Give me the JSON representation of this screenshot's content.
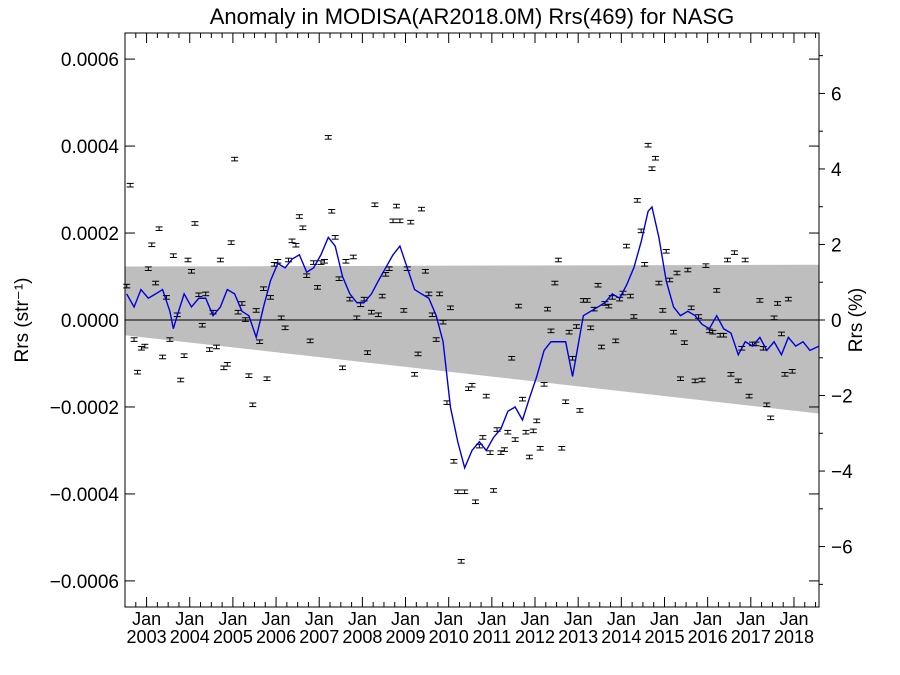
{
  "chart_data": {
    "type": "scatter",
    "title": "Anomaly in MODISA(AR2018.0M) Rrs(469) for NASG",
    "ylabel_left": "Rrs (str⁻¹)",
    "ylabel_right": "Rrs (%)",
    "ylim_left": [
      -0.00066,
      0.00066
    ],
    "ylim_right": [
      -7.6,
      7.6
    ],
    "xlim": [
      2002.5,
      2018.58
    ],
    "left_ticks": [
      "0.0006",
      "0.0004",
      "0.0002",
      "0.0000",
      "−0.0002",
      "−0.0004",
      "−0.0006"
    ],
    "left_tick_values": [
      0.0006,
      0.0004,
      0.0002,
      0.0,
      -0.0002,
      -0.0004,
      -0.0006
    ],
    "right_ticks": [
      "6",
      "4",
      "2",
      "0",
      "−2",
      "−4",
      "−6"
    ],
    "right_tick_values": [
      6,
      4,
      2,
      0,
      -2,
      -4,
      -6
    ],
    "x_tick_top": "Jan",
    "x_tick_years": [
      "2003",
      "2004",
      "2005",
      "2006",
      "2007",
      "2008",
      "2009",
      "2010",
      "2011",
      "2012",
      "2013",
      "2014",
      "2015",
      "2016",
      "2017",
      "2018"
    ],
    "uncertainty_band": {
      "upper": [
        [
          2002.5,
          0.000123
        ],
        [
          2018.58,
          0.000127
        ]
      ],
      "lower": [
        [
          2002.5,
          -3.5e-05
        ],
        [
          2018.58,
          -0.000215
        ]
      ]
    },
    "points": [
      [
        2002.54,
        7.8e-05
      ],
      [
        2002.62,
        0.00031
      ],
      [
        2002.71,
        -4.5e-05
      ],
      [
        2002.79,
        -0.00012
      ],
      [
        2002.88,
        -6.5e-05
      ],
      [
        2002.96,
        -6e-05
      ],
      [
        2003.04,
        0.000118
      ],
      [
        2003.12,
        0.000173
      ],
      [
        2003.21,
        8.5e-05
      ],
      [
        2003.29,
        0.00021
      ],
      [
        2003.37,
        -8.5e-05
      ],
      [
        2003.46,
        5.2e-05
      ],
      [
        2003.54,
        -4.5e-05
      ],
      [
        2003.62,
        0.000148
      ],
      [
        2003.71,
        1.2e-05
      ],
      [
        2003.79,
        -0.000138
      ],
      [
        2003.87,
        -8.2e-05
      ],
      [
        2003.96,
        0.000138
      ],
      [
        2004.04,
        0.000112
      ],
      [
        2004.12,
        0.000222
      ],
      [
        2004.21,
        5.8e-05
      ],
      [
        2004.29,
        -1.2e-05
      ],
      [
        2004.37,
        6e-05
      ],
      [
        2004.46,
        -6.8e-05
      ],
      [
        2004.54,
        1.8e-05
      ],
      [
        2004.62,
        -6.2e-05
      ],
      [
        2004.71,
        0.000138
      ],
      [
        2004.79,
        -0.00011
      ],
      [
        2004.87,
        -0.000102
      ],
      [
        2004.96,
        0.000178
      ],
      [
        2005.04,
        0.00037
      ],
      [
        2005.12,
        1.8e-05
      ],
      [
        2005.21,
        3.8e-05
      ],
      [
        2005.29,
        1e-06
      ],
      [
        2005.37,
        -0.000128
      ],
      [
        2005.46,
        -0.000195
      ],
      [
        2005.54,
        2.2e-05
      ],
      [
        2005.62,
        -5e-05
      ],
      [
        2005.71,
        7.2e-05
      ],
      [
        2005.79,
        -0.000135
      ],
      [
        2005.87,
        5.2e-05
      ],
      [
        2005.96,
        0.000128
      ],
      [
        2006.04,
        0.000135
      ],
      [
        2006.12,
        5e-06
      ],
      [
        2006.21,
        -1.8e-05
      ],
      [
        2006.29,
        0.000138
      ],
      [
        2006.37,
        0.000182
      ],
      [
        2006.46,
        0.000172
      ],
      [
        2006.54,
        0.000238
      ],
      [
        2006.62,
        0.000212
      ],
      [
        2006.71,
        0.000102
      ],
      [
        2006.79,
        -4.8e-05
      ],
      [
        2006.87,
        0.000132
      ],
      [
        2006.96,
        7.5e-05
      ],
      [
        2007.04,
        0.000132
      ],
      [
        2007.12,
        0.000135
      ],
      [
        2007.21,
        0.00042
      ],
      [
        2007.29,
        0.00025
      ],
      [
        2007.37,
        0.00019
      ],
      [
        2007.46,
        9.5e-05
      ],
      [
        2007.54,
        -0.00011
      ],
      [
        2007.62,
        0.000135
      ],
      [
        2007.71,
        4.8e-05
      ],
      [
        2007.79,
        0.000145
      ],
      [
        2007.87,
        5e-06
      ],
      [
        2007.96,
        3.5e-05
      ],
      [
        2008.04,
        4.8e-05
      ],
      [
        2008.12,
        -7.5e-05
      ],
      [
        2008.21,
        1.8e-05
      ],
      [
        2008.29,
        0.000265
      ],
      [
        2008.37,
        1.2e-05
      ],
      [
        2008.46,
        5.5e-05
      ],
      [
        2008.54,
        0.000105
      ],
      [
        2008.62,
        0.000118
      ],
      [
        2008.71,
        0.000228
      ],
      [
        2008.79,
        0.000262
      ],
      [
        2008.87,
        0.000228
      ],
      [
        2008.96,
        2.2e-05
      ],
      [
        2009.04,
        0.000118
      ],
      [
        2009.12,
        0.000225
      ],
      [
        2009.21,
        -0.000125
      ],
      [
        2009.29,
        -7.8e-05
      ],
      [
        2009.37,
        0.000255
      ],
      [
        2009.46,
        0.000112
      ],
      [
        2009.54,
        6e-05
      ],
      [
        2009.62,
        1.2e-05
      ],
      [
        2009.71,
        -4.5e-05
      ],
      [
        2009.79,
        6e-05
      ],
      [
        2009.87,
        -5e-06
      ],
      [
        2009.96,
        -0.00019
      ],
      [
        2010.04,
        2.8e-05
      ],
      [
        2010.12,
        -0.000325
      ],
      [
        2010.21,
        -0.000395
      ],
      [
        2010.29,
        -0.000555
      ],
      [
        2010.37,
        -0.000395
      ],
      [
        2010.46,
        -0.000158
      ],
      [
        2010.54,
        -0.00015
      ],
      [
        2010.62,
        -0.000418
      ],
      [
        2010.71,
        -0.00029
      ],
      [
        2010.79,
        -0.00027
      ],
      [
        2010.87,
        -0.000175
      ],
      [
        2010.96,
        -0.000305
      ],
      [
        2011.04,
        -0.000392
      ],
      [
        2011.12,
        -0.000252
      ],
      [
        2011.21,
        -0.000305
      ],
      [
        2011.29,
        -0.000298
      ],
      [
        2011.37,
        -0.000258
      ],
      [
        2011.46,
        -8.8e-05
      ],
      [
        2011.54,
        -0.000275
      ],
      [
        2011.62,
        3.2e-05
      ],
      [
        2011.71,
        -0.000182
      ],
      [
        2011.79,
        -0.000258
      ],
      [
        2011.87,
        -0.000315
      ],
      [
        2011.96,
        -0.000255
      ],
      [
        2012.04,
        -0.000232
      ],
      [
        2012.12,
        -0.000295
      ],
      [
        2012.21,
        -0.000148
      ],
      [
        2012.29,
        2.5e-05
      ],
      [
        2012.37,
        -2.5e-05
      ],
      [
        2012.46,
        8.5e-05
      ],
      [
        2012.54,
        0.000138
      ],
      [
        2012.62,
        -0.000295
      ],
      [
        2012.71,
        -0.000188
      ],
      [
        2012.79,
        -2.8e-05
      ],
      [
        2012.87,
        -8.8e-05
      ],
      [
        2012.96,
        -1.5e-05
      ],
      [
        2013.04,
        -0.000208
      ],
      [
        2013.12,
        4.5e-05
      ],
      [
        2013.21,
        4.5e-05
      ],
      [
        2013.29,
        -1.8e-05
      ],
      [
        2013.37,
        2.5e-05
      ],
      [
        2013.46,
        8e-05
      ],
      [
        2013.54,
        -6.2e-05
      ],
      [
        2013.62,
        3.8e-05
      ],
      [
        2013.71,
        3.2e-05
      ],
      [
        2013.79,
        5.2e-05
      ],
      [
        2013.87,
        -4.8e-05
      ],
      [
        2013.96,
        4.8e-05
      ],
      [
        2014.04,
        6.2e-05
      ],
      [
        2014.12,
        0.00017
      ],
      [
        2014.21,
        5.5e-05
      ],
      [
        2014.29,
        8e-06
      ],
      [
        2014.37,
        0.000275
      ],
      [
        2014.46,
        0.000205
      ],
      [
        2014.54,
        0.000128
      ],
      [
        2014.62,
        0.000402
      ],
      [
        2014.71,
        0.000348
      ],
      [
        2014.79,
        0.000372
      ],
      [
        2014.87,
        8.5e-05
      ],
      [
        2014.96,
        2.2e-05
      ],
      [
        2015.04,
        0.000158
      ],
      [
        2015.12,
        9.2e-05
      ],
      [
        2015.21,
        -2.8e-05
      ],
      [
        2015.29,
        0.000108
      ],
      [
        2015.37,
        -0.000135
      ],
      [
        2015.46,
        -5.2e-05
      ],
      [
        2015.54,
        0.000115
      ],
      [
        2015.62,
        2.8e-05
      ],
      [
        2015.71,
        -0.00014
      ],
      [
        2015.79,
        8e-06
      ],
      [
        2015.87,
        -0.000138
      ],
      [
        2015.96,
        0.000125
      ],
      [
        2016.04,
        -2.5e-05
      ],
      [
        2016.12,
        -2.8e-05
      ],
      [
        2016.21,
        6.8e-05
      ],
      [
        2016.29,
        -3.5e-05
      ],
      [
        2016.37,
        -3.5e-05
      ],
      [
        2016.46,
        0.000138
      ],
      [
        2016.54,
        -0.000125
      ],
      [
        2016.62,
        0.000155
      ],
      [
        2016.71,
        -0.00014
      ],
      [
        2016.79,
        -6.5e-05
      ],
      [
        2016.87,
        0.000138
      ],
      [
        2016.96,
        -0.000175
      ],
      [
        2017.04,
        -5.5e-05
      ],
      [
        2017.12,
        -5.5e-05
      ],
      [
        2017.21,
        4.5e-05
      ],
      [
        2017.29,
        -6.5e-05
      ],
      [
        2017.37,
        -0.000195
      ],
      [
        2017.46,
        -0.000225
      ],
      [
        2017.54,
        5e-06
      ],
      [
        2017.62,
        3.8e-05
      ],
      [
        2017.71,
        -3.2e-05
      ],
      [
        2017.79,
        -0.000125
      ],
      [
        2017.87,
        4.8e-05
      ],
      [
        2017.96,
        -0.000118
      ]
    ],
    "smooth_line": [
      [
        2002.54,
        6e-05
      ],
      [
        2002.71,
        3e-05
      ],
      [
        2002.87,
        7e-05
      ],
      [
        2003.04,
        5e-05
      ],
      [
        2003.21,
        6e-05
      ],
      [
        2003.37,
        7e-05
      ],
      [
        2003.54,
        2e-05
      ],
      [
        2003.62,
        -2e-05
      ],
      [
        2003.71,
        1e-05
      ],
      [
        2003.87,
        6e-05
      ],
      [
        2004.04,
        3e-05
      ],
      [
        2004.21,
        5e-05
      ],
      [
        2004.37,
        5e-05
      ],
      [
        2004.54,
        1e-05
      ],
      [
        2004.71,
        3e-05
      ],
      [
        2004.87,
        7e-05
      ],
      [
        2005.04,
        6e-05
      ],
      [
        2005.21,
        2e-05
      ],
      [
        2005.37,
        1e-05
      ],
      [
        2005.54,
        -4e-05
      ],
      [
        2005.71,
        3e-05
      ],
      [
        2005.87,
        9e-05
      ],
      [
        2006.04,
        0.00013
      ],
      [
        2006.21,
        0.00012
      ],
      [
        2006.37,
        0.00014
      ],
      [
        2006.54,
        0.00015
      ],
      [
        2006.71,
        0.00011
      ],
      [
        2006.87,
        0.00012
      ],
      [
        2007.04,
        0.00015
      ],
      [
        2007.21,
        0.00019
      ],
      [
        2007.37,
        0.00017
      ],
      [
        2007.54,
        0.0001
      ],
      [
        2007.71,
        6e-05
      ],
      [
        2007.87,
        4e-05
      ],
      [
        2008.04,
        4e-05
      ],
      [
        2008.21,
        6e-05
      ],
      [
        2008.37,
        9e-05
      ],
      [
        2008.54,
        0.00012
      ],
      [
        2008.71,
        0.00015
      ],
      [
        2008.87,
        0.00017
      ],
      [
        2009.04,
        0.00012
      ],
      [
        2009.21,
        7e-05
      ],
      [
        2009.37,
        6e-05
      ],
      [
        2009.54,
        5e-05
      ],
      [
        2009.71,
        1e-05
      ],
      [
        2009.87,
        -5e-05
      ],
      [
        2010.04,
        -0.0002
      ],
      [
        2010.21,
        -0.00028
      ],
      [
        2010.37,
        -0.00034
      ],
      [
        2010.54,
        -0.0003
      ],
      [
        2010.71,
        -0.00028
      ],
      [
        2010.87,
        -0.0003
      ],
      [
        2011.04,
        -0.00027
      ],
      [
        2011.21,
        -0.00025
      ],
      [
        2011.37,
        -0.00021
      ],
      [
        2011.54,
        -0.0002
      ],
      [
        2011.71,
        -0.00023
      ],
      [
        2011.87,
        -0.00018
      ],
      [
        2012.04,
        -0.00013
      ],
      [
        2012.21,
        -7e-05
      ],
      [
        2012.37,
        -5e-05
      ],
      [
        2012.54,
        -5e-05
      ],
      [
        2012.71,
        -5e-05
      ],
      [
        2012.87,
        -0.00013
      ],
      [
        2012.96,
        -8e-05
      ],
      [
        2013.12,
        1e-05
      ],
      [
        2013.29,
        2e-05
      ],
      [
        2013.46,
        3e-05
      ],
      [
        2013.62,
        4e-05
      ],
      [
        2013.79,
        6e-05
      ],
      [
        2013.96,
        5e-05
      ],
      [
        2014.12,
        8e-05
      ],
      [
        2014.29,
        0.00012
      ],
      [
        2014.46,
        0.00018
      ],
      [
        2014.62,
        0.00025
      ],
      [
        2014.71,
        0.00026
      ],
      [
        2014.87,
        0.00019
      ],
      [
        2015.04,
        9e-05
      ],
      [
        2015.21,
        3e-05
      ],
      [
        2015.37,
        1e-05
      ],
      [
        2015.54,
        2e-05
      ],
      [
        2015.71,
        1e-05
      ],
      [
        2015.87,
        -1e-05
      ],
      [
        2016.04,
        -2e-05
      ],
      [
        2016.21,
        1e-05
      ],
      [
        2016.37,
        -2e-05
      ],
      [
        2016.54,
        -3e-05
      ],
      [
        2016.71,
        -8e-05
      ],
      [
        2016.87,
        -5e-05
      ],
      [
        2017.04,
        -6e-05
      ],
      [
        2017.21,
        -4e-05
      ],
      [
        2017.37,
        -7e-05
      ],
      [
        2017.54,
        -5e-05
      ],
      [
        2017.71,
        -8e-05
      ],
      [
        2017.87,
        -4e-05
      ],
      [
        2018.04,
        -6e-05
      ],
      [
        2018.21,
        -5e-05
      ],
      [
        2018.37,
        -7e-05
      ],
      [
        2018.58,
        -6e-05
      ]
    ],
    "colors": {
      "band": "#bebebe",
      "line": "#0000dd",
      "points": "#000000"
    }
  }
}
